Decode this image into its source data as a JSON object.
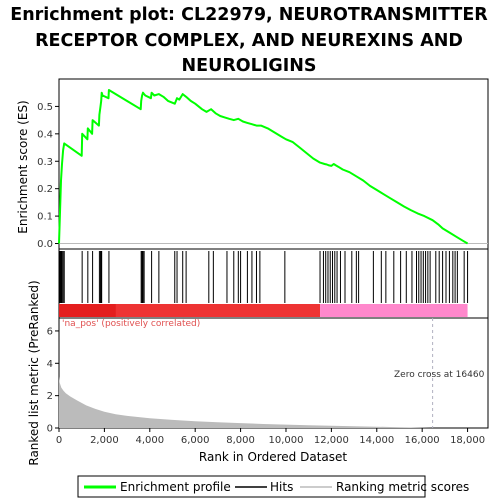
{
  "title_lines": [
    "Enrichment plot: CL22979, NEUROTRANSMITTER",
    "RECEPTOR COMPLEX, AND NEUREXINS AND",
    "NEUROLIGINS"
  ],
  "colors": {
    "es_curve": "#00ff00",
    "hits": "#000000",
    "positive_band": "#ee3333",
    "negative_band": "#ff88cc",
    "metric_fill": "#bbbbbb",
    "zero_cross_line": "#b0b0c0",
    "pos_label": "#e05050"
  },
  "chart_data": [
    {
      "type": "line",
      "panel": "enrichment_score",
      "ylabel": "Enrichment score (ES)",
      "xlim": [
        0,
        18900
      ],
      "ylim": [
        -0.02,
        0.6
      ],
      "yticks": [
        "0.0",
        "0.1",
        "0.2",
        "0.3",
        "0.4",
        "0.5"
      ],
      "series": [
        {
          "name": "Enrichment profile",
          "x": [
            0,
            30,
            60,
            90,
            130,
            180,
            230,
            1000,
            1020,
            1250,
            1270,
            1460,
            1480,
            1760,
            1780,
            1830,
            1860,
            1880,
            1920,
            2180,
            2200,
            3600,
            3620,
            3660,
            3700,
            3750,
            3800,
            4050,
            4080,
            4200,
            4400,
            4600,
            4800,
            5100,
            5200,
            5300,
            5450,
            5600,
            5800,
            6000,
            6300,
            6500,
            6700,
            6900,
            7100,
            7300,
            7500,
            7700,
            7900,
            8100,
            8300,
            8500,
            8700,
            8900,
            9200,
            9500,
            9800,
            10000,
            10300,
            10600,
            10900,
            11200,
            11500,
            11700,
            11800,
            11900,
            12000,
            12100,
            12200,
            12300,
            12500,
            12800,
            13100,
            13400,
            13700,
            14000,
            14300,
            14600,
            14900,
            15200,
            15500,
            15800,
            16100,
            16460,
            16700,
            16900,
            17200,
            17500,
            17800,
            18000
          ],
          "values": [
            0.0,
            0.08,
            0.16,
            0.23,
            0.29,
            0.34,
            0.365,
            0.32,
            0.4,
            0.38,
            0.42,
            0.4,
            0.45,
            0.43,
            0.47,
            0.5,
            0.52,
            0.55,
            0.54,
            0.53,
            0.56,
            0.49,
            0.52,
            0.54,
            0.55,
            0.545,
            0.54,
            0.53,
            0.55,
            0.54,
            0.545,
            0.535,
            0.52,
            0.51,
            0.53,
            0.525,
            0.545,
            0.535,
            0.52,
            0.51,
            0.49,
            0.48,
            0.49,
            0.475,
            0.465,
            0.46,
            0.455,
            0.45,
            0.455,
            0.445,
            0.44,
            0.435,
            0.43,
            0.43,
            0.42,
            0.405,
            0.39,
            0.38,
            0.37,
            0.35,
            0.33,
            0.31,
            0.295,
            0.29,
            0.288,
            0.285,
            0.283,
            0.29,
            0.285,
            0.28,
            0.27,
            0.26,
            0.245,
            0.23,
            0.21,
            0.195,
            0.18,
            0.165,
            0.15,
            0.135,
            0.122,
            0.11,
            0.1,
            0.085,
            0.07,
            0.055,
            0.04,
            0.025,
            0.01,
            0.0
          ]
        }
      ]
    },
    {
      "type": "scatter",
      "panel": "hits",
      "series": [
        {
          "name": "Hits",
          "x": [
            30,
            60,
            90,
            130,
            180,
            230,
            1020,
            1270,
            1480,
            1780,
            1830,
            1860,
            1880,
            2200,
            3620,
            3660,
            3700,
            3750,
            4080,
            4400,
            5100,
            5200,
            5450,
            5600,
            6600,
            6800,
            7400,
            7700,
            7900,
            8000,
            8300,
            8500,
            8700,
            8850,
            9950,
            11500,
            11650,
            11750,
            11850,
            11950,
            12050,
            12150,
            12250,
            12400,
            12600,
            12900,
            13100,
            13200,
            13850,
            14200,
            14400,
            14750,
            15050,
            15300,
            15550,
            15750,
            15850,
            15950,
            16050,
            16150,
            16250,
            16350,
            16600,
            16750,
            16900,
            17050,
            17200,
            17350,
            17450,
            17550,
            17850,
            18000
          ]
        }
      ]
    },
    {
      "type": "area",
      "panel": "ranked_list_metric",
      "ylabel": "Ranked list metric (PreRanked)",
      "xlabel": "Rank in Ordered Dataset",
      "xlim": [
        0,
        18900
      ],
      "ylim": [
        0,
        6.8
      ],
      "xticks": [
        "0",
        "2,000",
        "4,000",
        "6,000",
        "8,000",
        "10,000",
        "12,000",
        "14,000",
        "16,000",
        "18,000"
      ],
      "yticks": [
        "0",
        "2",
        "4",
        "6"
      ],
      "x": [
        0,
        30,
        100,
        200,
        300,
        500,
        800,
        1200,
        1600,
        2000,
        2500,
        3000,
        4000,
        5000,
        6000,
        7000,
        8000,
        9000,
        10000,
        11000,
        12000,
        13000,
        14000,
        15000,
        16000,
        16460,
        17000,
        18000
      ],
      "values": [
        3.2,
        2.8,
        2.5,
        2.3,
        2.15,
        1.95,
        1.7,
        1.4,
        1.18,
        1.0,
        0.85,
        0.75,
        0.6,
        0.5,
        0.42,
        0.36,
        0.3,
        0.25,
        0.21,
        0.17,
        0.14,
        0.11,
        0.08,
        0.05,
        0.02,
        0.0,
        0.0,
        0.0
      ],
      "annotations": {
        "pos_label": "'na_pos' (positively correlated)",
        "zero_cross": "Zero cross at 16460",
        "zero_cross_x": 16460
      }
    }
  ],
  "legend": {
    "items": [
      {
        "label": "Enrichment profile",
        "color": "#00ff00"
      },
      {
        "label": "Hits",
        "color": "#000000"
      },
      {
        "label": "Ranking metric scores",
        "color": "#bbbbbb"
      }
    ]
  }
}
